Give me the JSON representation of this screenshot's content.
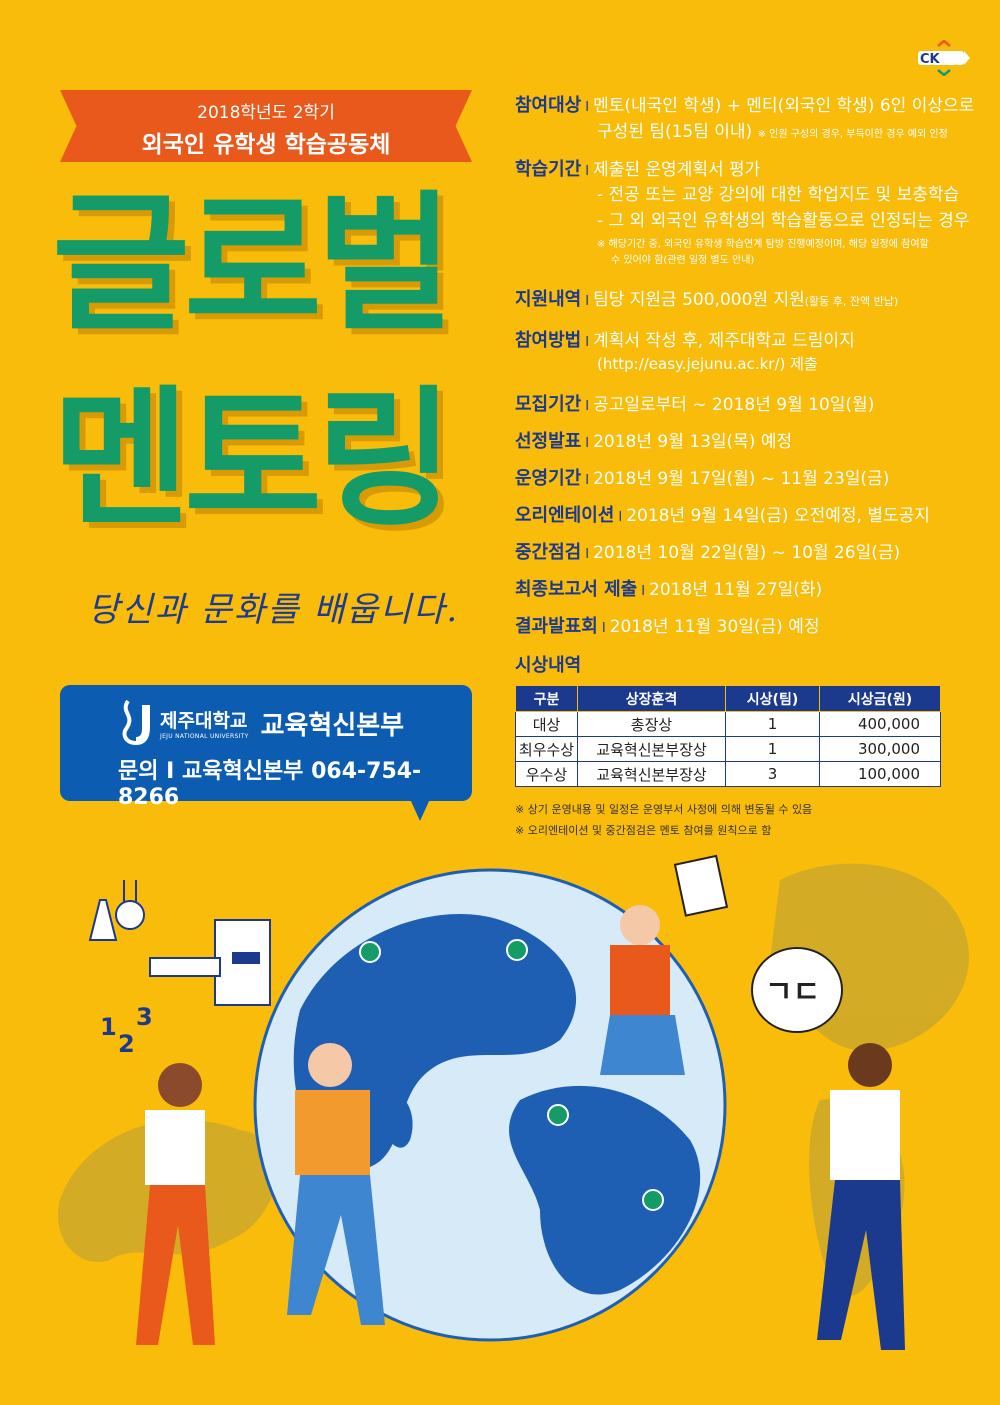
{
  "banner": {
    "line1": "2018학년도 2학기",
    "line2": "외국인 유학생 학습공동체"
  },
  "title": {
    "line1": "글로벌",
    "line2": "멘토링"
  },
  "slogan": "당신과 문화를 배웁니다.",
  "contact": {
    "uni_ko": "제주대학교",
    "uni_en": "JEJU NATIONAL UNIVERSITY",
    "dept": "교육혁신본부",
    "inquiry": "문의 I 교육혁신본부 064-754-8266",
    "logo_text": "JEJU"
  },
  "ck_logo": "CK",
  "info": {
    "target": {
      "label": "참여대상",
      "line1": "멘토(내국인 학생) + 멘티(외국인 학생) 6인 이상으로",
      "line2": "구성된 팀(15팀 이내)",
      "note": "※ 인원 구성의 경우, 부득이한 경우 예외 인정"
    },
    "period": {
      "label": "학습기간",
      "line1": "제출된 운영계획서 평가",
      "line2": "- 전공 또는 교양 강의에 대한 학업지도 및 보충학습",
      "line3": "- 그 외 외국인 유학생의 학습활동으로 인정되는 경우",
      "note1": "※ 해당기간 중, 외국인 유학생 학습연계 탐방 진행예정이며, 해당 일정에 참여할",
      "note2": "수 있어야 함(관련 일정 별도 안내)"
    },
    "support": {
      "label": "지원내역",
      "text": "팀당 지원금 500,000원 지원",
      "note": "(활동 후, 잔액 반납)"
    },
    "method": {
      "label": "참여방법",
      "line1": "계획서 작성 후, 제주대학교 드림이지",
      "line2": "(http://easy.jejunu.ac.kr/) 제출"
    },
    "recruit": {
      "label": "모집기간",
      "text": "공고일로부터 ~ 2018년 9월 10일(월)"
    },
    "selection": {
      "label": "선정발표",
      "text": "2018년 9월 13일(목) 예정"
    },
    "operation": {
      "label": "운영기간",
      "text": "2018년 9월 17일(월) ~ 11월 23일(금)"
    },
    "orientation": {
      "label": "오리엔테이션",
      "text": "2018년 9월 14일(금) 오전예정, 별도공지"
    },
    "midterm": {
      "label": "중간점검",
      "text": "2018년 10월 22일(월) ~ 10월 26일(금)"
    },
    "final_report": {
      "label": "최종보고서 제출",
      "text": "2018년 11월 27일(화)"
    },
    "presentation": {
      "label": "결과발표회",
      "text": "2018년 11월 30일(금) 예정"
    },
    "separator": "I"
  },
  "awards": {
    "title": "시상내역",
    "headers": [
      "구분",
      "상장훈격",
      "시상(팀)",
      "시상금(원)"
    ],
    "rows": [
      [
        "대상",
        "총장상",
        "1",
        "400,000"
      ],
      [
        "최우수상",
        "교육혁신본부장상",
        "1",
        "300,000"
      ],
      [
        "우수상",
        "교육혁신본부장상",
        "3",
        "100,000"
      ]
    ]
  },
  "notes": [
    "※ 상기 운영내용 및 일정은 운영부서 사정에 의해 변동될 수 있음",
    "※ 오리엔테이션 및 중간점검은 멘토 참여를 원칙으로 함"
  ],
  "illustration": {
    "bubble_text": "ㄱㄷ",
    "numbers": [
      "1",
      "2",
      "3"
    ]
  },
  "colors": {
    "background": "#F9BC0B",
    "navy": "#1B3A8E",
    "green": "#149B68",
    "orange": "#E8591B",
    "blue_box": "#0C5CB1"
  }
}
